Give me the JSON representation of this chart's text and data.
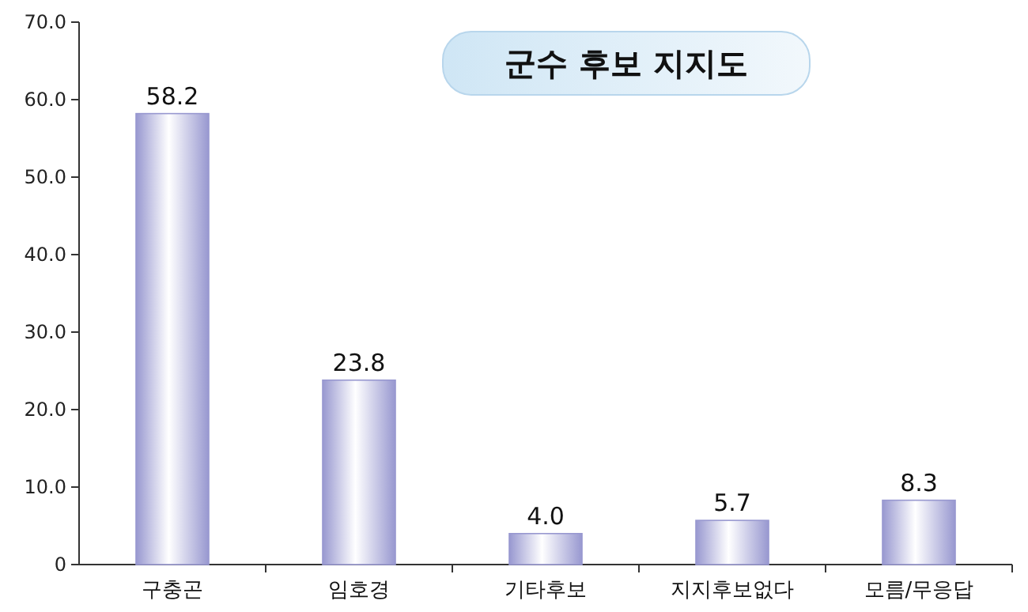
{
  "chart_data": {
    "type": "bar",
    "title": "군수 후보 지지도",
    "categories": [
      "구충곤",
      "임호경",
      "기타후보",
      "지지후보없다",
      "모름/무응답"
    ],
    "values": [
      58.2,
      23.8,
      4.0,
      5.7,
      8.3
    ],
    "value_labels": [
      "58.2",
      "23.8",
      "4.0",
      "5.7",
      "8.3"
    ],
    "color": "#9898d0",
    "ylim": [
      0,
      70
    ],
    "yticks": [
      0,
      {
        "value": 10,
        "label": "10.0"
      },
      {
        "value": 20,
        "label": "20.0"
      },
      {
        "value": 30,
        "label": "30.0"
      },
      {
        "value": 40,
        "label": "40.0"
      },
      {
        "value": 50,
        "label": "50.0"
      },
      {
        "value": 60,
        "label": "60.0"
      },
      {
        "value": 70,
        "label": "70.0"
      }
    ]
  }
}
